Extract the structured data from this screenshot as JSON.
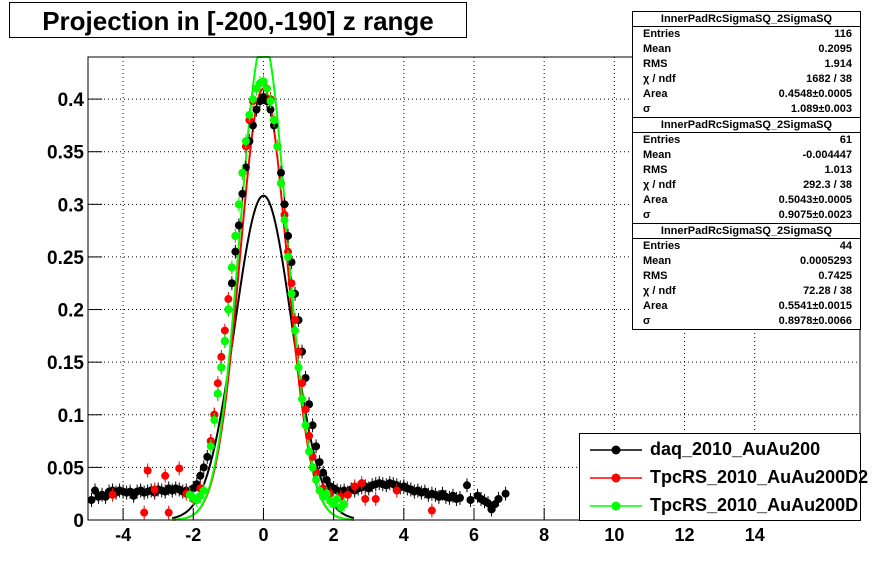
{
  "title": "Projection in [-200,-190] z range",
  "stats": [
    {
      "name": "InnerPadRcSigmaSQ_2SigmaSQ",
      "rows": [
        {
          "k": "Entries",
          "v": "116"
        },
        {
          "k": "Mean",
          "v": "0.2095"
        },
        {
          "k": "RMS",
          "v": "1.914"
        },
        {
          "k": "χ  / ndf",
          "v": "1682 / 38"
        },
        {
          "k": "Area",
          "v": "0.4548±0.0005"
        },
        {
          "k": "σ",
          "v": "1.089±0.003"
        }
      ]
    },
    {
      "name": "InnerPadRcSigmaSQ_2SigmaSQ",
      "rows": [
        {
          "k": "Entries",
          "v": "61"
        },
        {
          "k": "Mean",
          "v": "-0.004447"
        },
        {
          "k": "RMS",
          "v": "1.013"
        },
        {
          "k": "χ  / ndf",
          "v": "292.3 / 38"
        },
        {
          "k": "Area",
          "v": "0.5043±0.0005"
        },
        {
          "k": "σ",
          "v": "0.9075±0.0023"
        }
      ]
    },
    {
      "name": "InnerPadRcSigmaSQ_2SigmaSQ",
      "rows": [
        {
          "k": "Entries",
          "v": "44"
        },
        {
          "k": "Mean",
          "v": "0.0005293"
        },
        {
          "k": "RMS",
          "v": "0.7425"
        },
        {
          "k": "χ  / ndf",
          "v": "72.28 / 38"
        },
        {
          "k": "Area",
          "v": "0.5541±0.0015"
        },
        {
          "k": "σ",
          "v": "0.8978±0.0066"
        }
      ]
    }
  ],
  "legend": [
    {
      "label": "daq_2010_AuAu200",
      "color": "#000000"
    },
    {
      "label": "TpcRS_2010_AuAu200D2",
      "color": "#ff0000"
    },
    {
      "label": "TpcRS_2010_AuAu200D",
      "color": "#00ff00"
    }
  ],
  "chart_data": {
    "type": "scatter",
    "title": "Projection in [-200,-190] z range",
    "xlim": [
      -5,
      17
    ],
    "ylim": [
      0,
      0.44
    ],
    "x_ticks": [
      "-4",
      "-2",
      "0",
      "2",
      "4",
      "6",
      "8",
      "10",
      "12",
      "14"
    ],
    "x_tick_values": [
      -4,
      -2,
      0,
      2,
      4,
      6,
      8,
      10,
      12,
      14
    ],
    "y_ticks": [
      "0",
      "0.05",
      "0.1",
      "0.15",
      "0.2",
      "0.25",
      "0.3",
      "0.35",
      "0.4"
    ],
    "y_tick_values": [
      0,
      0.05,
      0.1,
      0.15,
      0.2,
      0.25,
      0.3,
      0.35,
      0.4
    ],
    "grid": true,
    "legend_position": "bottom-right",
    "series": [
      {
        "name": "daq_2010_AuAu200",
        "color": "#000000",
        "points": [
          [
            -4.9,
            0.019
          ],
          [
            -4.8,
            0.028
          ],
          [
            -4.7,
            0.022
          ],
          [
            -4.6,
            0.024
          ],
          [
            -4.5,
            0.022
          ],
          [
            -4.4,
            0.027
          ],
          [
            -4.3,
            0.028
          ],
          [
            -4.2,
            0.026
          ],
          [
            -4.1,
            0.028
          ],
          [
            -4.0,
            0.027
          ],
          [
            -3.9,
            0.026
          ],
          [
            -3.8,
            0.027
          ],
          [
            -3.7,
            0.023
          ],
          [
            -3.6,
            0.027
          ],
          [
            -3.5,
            0.028
          ],
          [
            -3.4,
            0.026
          ],
          [
            -3.3,
            0.027
          ],
          [
            -3.2,
            0.028
          ],
          [
            -3.1,
            0.026
          ],
          [
            -3.0,
            0.029
          ],
          [
            -2.9,
            0.028
          ],
          [
            -2.8,
            0.027
          ],
          [
            -2.7,
            0.03
          ],
          [
            -2.6,
            0.028
          ],
          [
            -2.5,
            0.03
          ],
          [
            -2.4,
            0.029
          ],
          [
            -2.3,
            0.027
          ],
          [
            -2.2,
            0.028
          ],
          [
            -2.1,
            0.026
          ],
          [
            -2.0,
            0.03
          ],
          [
            -1.9,
            0.034
          ],
          [
            -1.8,
            0.042
          ],
          [
            -1.7,
            0.05
          ],
          [
            -1.6,
            0.06
          ],
          [
            -1.5,
            0.075
          ],
          [
            -1.4,
            0.1
          ],
          [
            -1.3,
            0.12
          ],
          [
            -1.2,
            0.145
          ],
          [
            -1.1,
            0.17
          ],
          [
            -1.0,
            0.2
          ],
          [
            -0.9,
            0.225
          ],
          [
            -0.8,
            0.255
          ],
          [
            -0.7,
            0.28
          ],
          [
            -0.6,
            0.31
          ],
          [
            -0.5,
            0.335
          ],
          [
            -0.4,
            0.36
          ],
          [
            -0.3,
            0.375
          ],
          [
            -0.2,
            0.39
          ],
          [
            -0.1,
            0.398
          ],
          [
            0.0,
            0.402
          ],
          [
            0.1,
            0.398
          ],
          [
            0.2,
            0.39
          ],
          [
            0.3,
            0.375
          ],
          [
            0.4,
            0.355
          ],
          [
            0.5,
            0.33
          ],
          [
            0.6,
            0.3
          ],
          [
            0.7,
            0.27
          ],
          [
            0.8,
            0.245
          ],
          [
            0.9,
            0.215
          ],
          [
            1.0,
            0.19
          ],
          [
            1.1,
            0.16
          ],
          [
            1.2,
            0.135
          ],
          [
            1.3,
            0.11
          ],
          [
            1.4,
            0.09
          ],
          [
            1.5,
            0.07
          ],
          [
            1.6,
            0.055
          ],
          [
            1.7,
            0.045
          ],
          [
            1.8,
            0.038
          ],
          [
            1.9,
            0.032
          ],
          [
            2.0,
            0.03
          ],
          [
            2.1,
            0.028
          ],
          [
            2.2,
            0.027
          ],
          [
            2.3,
            0.028
          ],
          [
            2.4,
            0.026
          ],
          [
            2.5,
            0.029
          ],
          [
            2.6,
            0.028
          ],
          [
            2.7,
            0.03
          ],
          [
            2.8,
            0.031
          ],
          [
            2.9,
            0.032
          ],
          [
            3.0,
            0.03
          ],
          [
            3.1,
            0.033
          ],
          [
            3.2,
            0.034
          ],
          [
            3.3,
            0.035
          ],
          [
            3.4,
            0.034
          ],
          [
            3.5,
            0.033
          ],
          [
            3.6,
            0.035
          ],
          [
            3.7,
            0.034
          ],
          [
            3.8,
            0.033
          ],
          [
            3.9,
            0.031
          ],
          [
            4.0,
            0.032
          ],
          [
            4.1,
            0.03
          ],
          [
            4.2,
            0.029
          ],
          [
            4.3,
            0.027
          ],
          [
            4.4,
            0.028
          ],
          [
            4.5,
            0.026
          ],
          [
            4.6,
            0.027
          ],
          [
            4.7,
            0.024
          ],
          [
            4.8,
            0.025
          ],
          [
            4.9,
            0.024
          ],
          [
            5.0,
            0.022
          ],
          [
            5.1,
            0.025
          ],
          [
            5.2,
            0.022
          ],
          [
            5.3,
            0.021
          ],
          [
            5.4,
            0.023
          ],
          [
            5.5,
            0.02
          ],
          [
            5.6,
            0.021
          ],
          [
            5.8,
            0.033
          ],
          [
            5.9,
            0.019
          ],
          [
            6.1,
            0.023
          ],
          [
            6.2,
            0.02
          ],
          [
            6.3,
            0.018
          ],
          [
            6.4,
            0.016
          ],
          [
            6.5,
            0.01
          ],
          [
            6.6,
            0.015
          ],
          [
            6.7,
            0.02
          ],
          [
            6.9,
            0.025
          ]
        ]
      },
      {
        "name": "TpcRS_2010_AuAu200D2",
        "color": "#ff0000",
        "points": [
          [
            -4.3,
            0.024
          ],
          [
            -3.3,
            0.047
          ],
          [
            -3.4,
            0.007
          ],
          [
            -3.1,
            0.029
          ],
          [
            -2.8,
            0.042
          ],
          [
            -2.7,
            0.007
          ],
          [
            -2.4,
            0.049
          ],
          [
            -2.2,
            0.025
          ],
          [
            -2.0,
            0.02
          ],
          [
            -1.8,
            0.03
          ],
          [
            -1.5,
            0.075
          ],
          [
            -1.4,
            0.1
          ],
          [
            -1.3,
            0.13
          ],
          [
            -1.2,
            0.155
          ],
          [
            -1.1,
            0.18
          ],
          [
            -1.0,
            0.21
          ],
          [
            -0.9,
            0.24
          ],
          [
            -0.8,
            0.27
          ],
          [
            -0.7,
            0.3
          ],
          [
            -0.6,
            0.33
          ],
          [
            -0.5,
            0.355
          ],
          [
            -0.4,
            0.38
          ],
          [
            -0.3,
            0.398
          ],
          [
            -0.2,
            0.41
          ],
          [
            -0.1,
            0.415
          ],
          [
            0.0,
            0.416
          ],
          [
            0.1,
            0.41
          ],
          [
            0.2,
            0.4
          ],
          [
            0.3,
            0.38
          ],
          [
            0.4,
            0.355
          ],
          [
            0.5,
            0.32
          ],
          [
            0.6,
            0.29
          ],
          [
            0.7,
            0.255
          ],
          [
            0.8,
            0.225
          ],
          [
            0.9,
            0.19
          ],
          [
            1.0,
            0.16
          ],
          [
            1.1,
            0.13
          ],
          [
            1.2,
            0.105
          ],
          [
            1.3,
            0.08
          ],
          [
            1.4,
            0.06
          ],
          [
            1.5,
            0.045
          ],
          [
            1.7,
            0.03
          ],
          [
            1.9,
            0.025
          ],
          [
            2.2,
            0.022
          ],
          [
            2.4,
            0.024
          ],
          [
            2.6,
            0.032
          ],
          [
            2.9,
            0.02
          ],
          [
            2.8,
            0.035
          ],
          [
            3.2,
            0.02
          ],
          [
            3.8,
            0.028
          ],
          [
            4.8,
            0.009
          ]
        ]
      },
      {
        "name": "TpcRS_2010_AuAu200D",
        "color": "#00ff00",
        "points": [
          [
            -2.1,
            0.024
          ],
          [
            -2.0,
            0.021
          ],
          [
            -1.9,
            0.019
          ],
          [
            -1.8,
            0.023
          ],
          [
            -1.7,
            0.028
          ],
          [
            -1.5,
            0.07
          ],
          [
            -1.4,
            0.095
          ],
          [
            -1.3,
            0.12
          ],
          [
            -1.2,
            0.145
          ],
          [
            -1.1,
            0.17
          ],
          [
            -1.0,
            0.2
          ],
          [
            -0.9,
            0.24
          ],
          [
            -0.8,
            0.27
          ],
          [
            -0.7,
            0.3
          ],
          [
            -0.6,
            0.33
          ],
          [
            -0.5,
            0.36
          ],
          [
            -0.4,
            0.385
          ],
          [
            -0.3,
            0.4
          ],
          [
            -0.2,
            0.41
          ],
          [
            -0.1,
            0.415
          ],
          [
            0.0,
            0.417
          ],
          [
            0.1,
            0.41
          ],
          [
            0.2,
            0.398
          ],
          [
            0.3,
            0.38
          ],
          [
            0.4,
            0.355
          ],
          [
            0.5,
            0.32
          ],
          [
            0.6,
            0.285
          ],
          [
            0.7,
            0.25
          ],
          [
            0.8,
            0.215
          ],
          [
            0.9,
            0.18
          ],
          [
            1.0,
            0.145
          ],
          [
            1.1,
            0.115
          ],
          [
            1.2,
            0.09
          ],
          [
            1.3,
            0.065
          ],
          [
            1.4,
            0.05
          ],
          [
            1.5,
            0.038
          ],
          [
            1.6,
            0.028
          ],
          [
            1.7,
            0.022
          ],
          [
            1.8,
            0.025
          ],
          [
            1.9,
            0.018
          ],
          [
            2.0,
            0.015
          ],
          [
            2.1,
            0.02
          ],
          [
            2.2,
            0.012
          ],
          [
            2.3,
            0.015
          ]
        ]
      }
    ],
    "fits": [
      {
        "color": "#000000",
        "area": 0.4548,
        "sigma": 1.089,
        "mean": 0
      },
      {
        "color": "#ff0000",
        "area": 0.5043,
        "sigma": 0.9075,
        "mean": 0
      },
      {
        "color": "#00ff00",
        "area": 0.5541,
        "sigma": 0.8978,
        "mean": 0
      }
    ]
  }
}
